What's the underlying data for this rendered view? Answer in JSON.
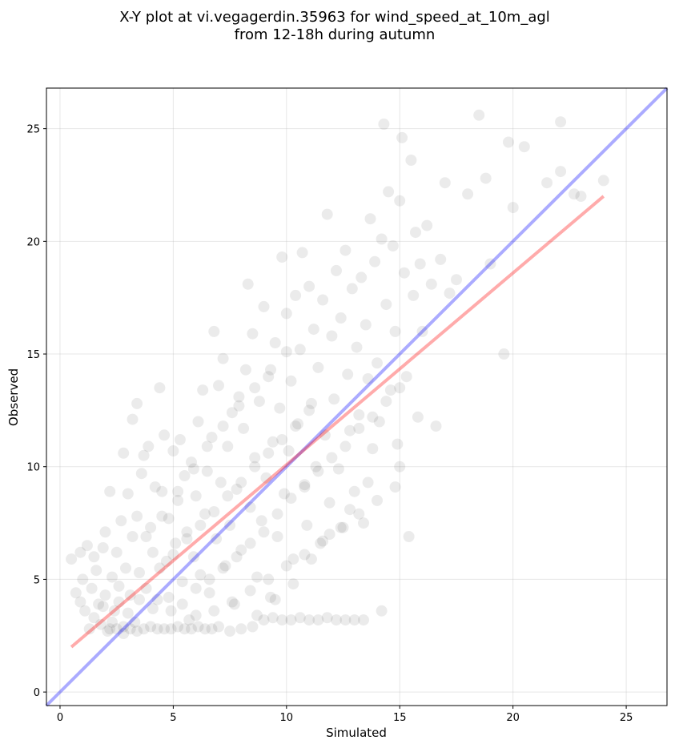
{
  "chart_data": {
    "type": "scatter",
    "title_lines": [
      "X-Y plot at vi.vegagerdin.35963 for wind_speed_at_10m_agl",
      "from 12-18h during autumn"
    ],
    "xlabel": "Simulated",
    "ylabel": "Observed",
    "xlim": [
      -0.6,
      26.8
    ],
    "ylim": [
      -0.6,
      26.8
    ],
    "xticks": [
      0,
      5,
      10,
      15,
      20,
      25
    ],
    "yticks": [
      0,
      5,
      10,
      15,
      20,
      25
    ],
    "grid": true,
    "colors": {
      "points": "#000000",
      "identity_line": "#0000ff",
      "fit_line": "#ff0000"
    },
    "lines": [
      {
        "kind": "identity",
        "color": "#0000ff",
        "x": [
          -0.6,
          26.8
        ],
        "y": [
          -0.6,
          26.8
        ]
      },
      {
        "kind": "fit",
        "color": "#ff0000",
        "x": [
          0.5,
          24.0
        ],
        "y": [
          2.0,
          22.0
        ]
      }
    ],
    "points": [
      [
        0.5,
        5.9
      ],
      [
        0.7,
        4.4
      ],
      [
        0.9,
        4.0
      ],
      [
        0.9,
        6.2
      ],
      [
        1.0,
        5.0
      ],
      [
        1.1,
        3.6
      ],
      [
        1.2,
        6.5
      ],
      [
        1.3,
        2.8
      ],
      [
        1.4,
        4.6
      ],
      [
        1.5,
        6.0
      ],
      [
        1.6,
        5.4
      ],
      [
        1.7,
        3.9
      ],
      [
        1.8,
        3.0
      ],
      [
        1.9,
        6.4
      ],
      [
        2.0,
        7.1
      ],
      [
        2.0,
        4.3
      ],
      [
        2.1,
        2.7
      ],
      [
        2.2,
        8.9
      ],
      [
        2.3,
        5.1
      ],
      [
        2.4,
        3.6
      ],
      [
        2.5,
        6.2
      ],
      [
        2.6,
        4.7
      ],
      [
        2.7,
        7.6
      ],
      [
        2.8,
        10.6
      ],
      [
        2.8,
        2.6
      ],
      [
        2.9,
        5.5
      ],
      [
        3.0,
        8.8
      ],
      [
        3.1,
        4.3
      ],
      [
        3.2,
        12.1
      ],
      [
        3.2,
        6.9
      ],
      [
        3.3,
        3.1
      ],
      [
        3.4,
        12.8
      ],
      [
        3.4,
        7.8
      ],
      [
        3.5,
        5.3
      ],
      [
        3.6,
        9.7
      ],
      [
        3.7,
        10.5
      ],
      [
        3.8,
        4.6
      ],
      [
        3.9,
        10.9
      ],
      [
        4.0,
        7.3
      ],
      [
        4.1,
        6.2
      ],
      [
        4.2,
        9.1
      ],
      [
        4.3,
        4.1
      ],
      [
        4.4,
        13.5
      ],
      [
        4.5,
        8.9
      ],
      [
        4.6,
        11.4
      ],
      [
        4.7,
        5.8
      ],
      [
        4.8,
        7.7
      ],
      [
        4.9,
        3.6
      ],
      [
        5.0,
        10.7
      ],
      [
        5.1,
        6.6
      ],
      [
        5.2,
        8.5
      ],
      [
        5.3,
        11.2
      ],
      [
        5.4,
        4.9
      ],
      [
        5.5,
        9.6
      ],
      [
        5.6,
        7.1
      ],
      [
        5.7,
        3.2
      ],
      [
        5.8,
        10.2
      ],
      [
        5.9,
        6.0
      ],
      [
        6.0,
        8.7
      ],
      [
        6.1,
        12.0
      ],
      [
        6.2,
        5.2
      ],
      [
        6.3,
        13.4
      ],
      [
        6.4,
        7.9
      ],
      [
        6.5,
        9.8
      ],
      [
        6.6,
        4.4
      ],
      [
        6.7,
        11.3
      ],
      [
        6.8,
        16.0
      ],
      [
        6.9,
        6.8
      ],
      [
        7.0,
        13.6
      ],
      [
        7.1,
        9.3
      ],
      [
        7.2,
        14.8
      ],
      [
        7.3,
        5.6
      ],
      [
        7.4,
        10.9
      ],
      [
        7.5,
        7.4
      ],
      [
        7.6,
        12.4
      ],
      [
        7.7,
        3.9
      ],
      [
        7.8,
        9.0
      ],
      [
        7.9,
        13.1
      ],
      [
        8.0,
        6.3
      ],
      [
        8.1,
        11.7
      ],
      [
        8.2,
        14.3
      ],
      [
        8.3,
        18.1
      ],
      [
        8.4,
        8.2
      ],
      [
        8.5,
        15.9
      ],
      [
        8.6,
        10.4
      ],
      [
        8.7,
        5.1
      ],
      [
        8.8,
        12.9
      ],
      [
        8.9,
        7.6
      ],
      [
        9.0,
        17.1
      ],
      [
        9.1,
        9.5
      ],
      [
        9.2,
        14.0
      ],
      [
        9.3,
        4.2
      ],
      [
        9.4,
        11.1
      ],
      [
        9.5,
        15.5
      ],
      [
        9.6,
        6.9
      ],
      [
        9.7,
        12.6
      ],
      [
        9.8,
        19.3
      ],
      [
        9.9,
        8.8
      ],
      [
        10.0,
        16.8
      ],
      [
        10.1,
        10.7
      ],
      [
        10.2,
        13.8
      ],
      [
        10.3,
        5.9
      ],
      [
        10.4,
        17.6
      ],
      [
        10.5,
        11.9
      ],
      [
        10.6,
        15.2
      ],
      [
        10.7,
        19.5
      ],
      [
        10.8,
        9.2
      ],
      [
        10.9,
        7.4
      ],
      [
        11.0,
        18.0
      ],
      [
        11.1,
        12.8
      ],
      [
        11.2,
        16.1
      ],
      [
        11.3,
        10.0
      ],
      [
        11.4,
        14.4
      ],
      [
        11.5,
        6.6
      ],
      [
        11.6,
        17.4
      ],
      [
        11.7,
        11.4
      ],
      [
        11.8,
        21.2
      ],
      [
        11.9,
        8.4
      ],
      [
        12.0,
        15.8
      ],
      [
        12.1,
        13.0
      ],
      [
        12.2,
        18.7
      ],
      [
        12.3,
        9.9
      ],
      [
        12.4,
        16.6
      ],
      [
        12.5,
        7.3
      ],
      [
        12.6,
        19.6
      ],
      [
        12.7,
        14.1
      ],
      [
        12.8,
        11.6
      ],
      [
        12.9,
        17.9
      ],
      [
        13.0,
        8.9
      ],
      [
        13.1,
        15.3
      ],
      [
        13.2,
        12.3
      ],
      [
        13.3,
        18.4
      ],
      [
        13.4,
        7.5
      ],
      [
        13.5,
        16.3
      ],
      [
        13.6,
        13.9
      ],
      [
        13.7,
        21.0
      ],
      [
        13.8,
        10.8
      ],
      [
        13.9,
        19.1
      ],
      [
        14.0,
        14.6
      ],
      [
        14.1,
        12.0
      ],
      [
        14.2,
        20.1
      ],
      [
        14.3,
        25.2
      ],
      [
        14.4,
        17.2
      ],
      [
        14.5,
        22.2
      ],
      [
        14.6,
        13.4
      ],
      [
        14.7,
        19.8
      ],
      [
        14.8,
        16.0
      ],
      [
        14.9,
        11.0
      ],
      [
        15.0,
        21.8
      ],
      [
        15.1,
        24.6
      ],
      [
        15.2,
        18.6
      ],
      [
        15.3,
        14.0
      ],
      [
        15.4,
        6.9
      ],
      [
        15.5,
        23.6
      ],
      [
        15.6,
        17.6
      ],
      [
        15.7,
        20.4
      ],
      [
        15.8,
        12.2
      ],
      [
        15.9,
        19.0
      ],
      [
        16.0,
        16.0
      ],
      [
        16.2,
        20.7
      ],
      [
        16.4,
        18.1
      ],
      [
        16.6,
        11.8
      ],
      [
        16.8,
        19.2
      ],
      [
        17.0,
        22.6
      ],
      [
        17.2,
        17.7
      ],
      [
        17.5,
        18.3
      ],
      [
        18.0,
        22.1
      ],
      [
        18.5,
        25.6
      ],
      [
        18.8,
        22.8
      ],
      [
        19.0,
        19.0
      ],
      [
        19.6,
        15.0
      ],
      [
        19.8,
        24.4
      ],
      [
        20.0,
        21.5
      ],
      [
        20.5,
        24.2
      ],
      [
        21.5,
        22.6
      ],
      [
        22.1,
        25.3
      ],
      [
        22.1,
        23.1
      ],
      [
        22.7,
        22.1
      ],
      [
        23.0,
        22.0
      ],
      [
        24.0,
        22.7
      ],
      [
        2.2,
        2.8
      ],
      [
        2.5,
        2.8
      ],
      [
        2.8,
        2.9
      ],
      [
        3.1,
        2.8
      ],
      [
        3.4,
        2.7
      ],
      [
        3.7,
        2.8
      ],
      [
        4.0,
        2.9
      ],
      [
        4.3,
        2.8
      ],
      [
        4.6,
        2.8
      ],
      [
        4.9,
        2.8
      ],
      [
        5.2,
        2.9
      ],
      [
        5.5,
        2.8
      ],
      [
        5.8,
        2.8
      ],
      [
        6.1,
        2.9
      ],
      [
        6.4,
        2.8
      ],
      [
        6.7,
        2.8
      ],
      [
        7.0,
        2.9
      ],
      [
        7.5,
        2.7
      ],
      [
        8.0,
        2.8
      ],
      [
        8.5,
        2.9
      ],
      [
        9.0,
        3.2
      ],
      [
        9.4,
        3.3
      ],
      [
        9.8,
        3.2
      ],
      [
        10.2,
        3.2
      ],
      [
        10.6,
        3.3
      ],
      [
        11.0,
        3.2
      ],
      [
        11.4,
        3.2
      ],
      [
        11.8,
        3.3
      ],
      [
        12.2,
        3.2
      ],
      [
        12.6,
        3.2
      ],
      [
        13.0,
        3.2
      ],
      [
        13.4,
        3.2
      ],
      [
        14.2,
        3.6
      ],
      [
        1.5,
        3.3
      ],
      [
        1.9,
        3.8
      ],
      [
        2.3,
        3.1
      ],
      [
        2.6,
        4.0
      ],
      [
        3.0,
        3.5
      ],
      [
        3.5,
        4.1
      ],
      [
        4.1,
        3.7
      ],
      [
        4.8,
        4.2
      ],
      [
        5.4,
        3.9
      ],
      [
        6.0,
        4.6
      ],
      [
        6.6,
        5.0
      ],
      [
        7.2,
        5.5
      ],
      [
        7.8,
        6.0
      ],
      [
        8.4,
        6.6
      ],
      [
        9.0,
        7.1
      ],
      [
        9.6,
        7.9
      ],
      [
        10.2,
        8.6
      ],
      [
        10.8,
        9.1
      ],
      [
        11.4,
        9.8
      ],
      [
        12.0,
        10.4
      ],
      [
        12.6,
        10.9
      ],
      [
        13.2,
        11.7
      ],
      [
        13.8,
        12.2
      ],
      [
        14.4,
        12.9
      ],
      [
        15.0,
        13.5
      ],
      [
        4.4,
        5.5
      ],
      [
        5.0,
        6.1
      ],
      [
        5.6,
        6.8
      ],
      [
        6.2,
        7.4
      ],
      [
        6.8,
        8.0
      ],
      [
        7.4,
        8.7
      ],
      [
        8.0,
        9.3
      ],
      [
        8.6,
        10.0
      ],
      [
        9.2,
        10.6
      ],
      [
        9.8,
        11.2
      ],
      [
        10.4,
        11.8
      ],
      [
        11.0,
        12.5
      ],
      [
        3.8,
        6.9
      ],
      [
        4.5,
        7.8
      ],
      [
        5.2,
        8.9
      ],
      [
        5.9,
        9.9
      ],
      [
        6.5,
        10.9
      ],
      [
        7.2,
        11.8
      ],
      [
        7.9,
        12.7
      ],
      [
        8.6,
        13.5
      ],
      [
        9.3,
        14.3
      ],
      [
        10.0,
        15.1
      ],
      [
        6.0,
        3.4
      ],
      [
        6.8,
        3.6
      ],
      [
        7.6,
        4.0
      ],
      [
        8.4,
        4.5
      ],
      [
        9.2,
        5.0
      ],
      [
        10.0,
        5.6
      ],
      [
        10.8,
        6.1
      ],
      [
        11.6,
        6.7
      ],
      [
        12.4,
        7.3
      ],
      [
        13.2,
        7.9
      ],
      [
        14.0,
        8.5
      ],
      [
        14.8,
        9.1
      ],
      [
        15.0,
        10.0
      ],
      [
        13.6,
        9.3
      ],
      [
        12.8,
        8.1
      ],
      [
        11.9,
        7.0
      ],
      [
        11.1,
        5.9
      ],
      [
        10.3,
        4.8
      ],
      [
        9.5,
        4.1
      ],
      [
        8.7,
        3.4
      ]
    ]
  }
}
